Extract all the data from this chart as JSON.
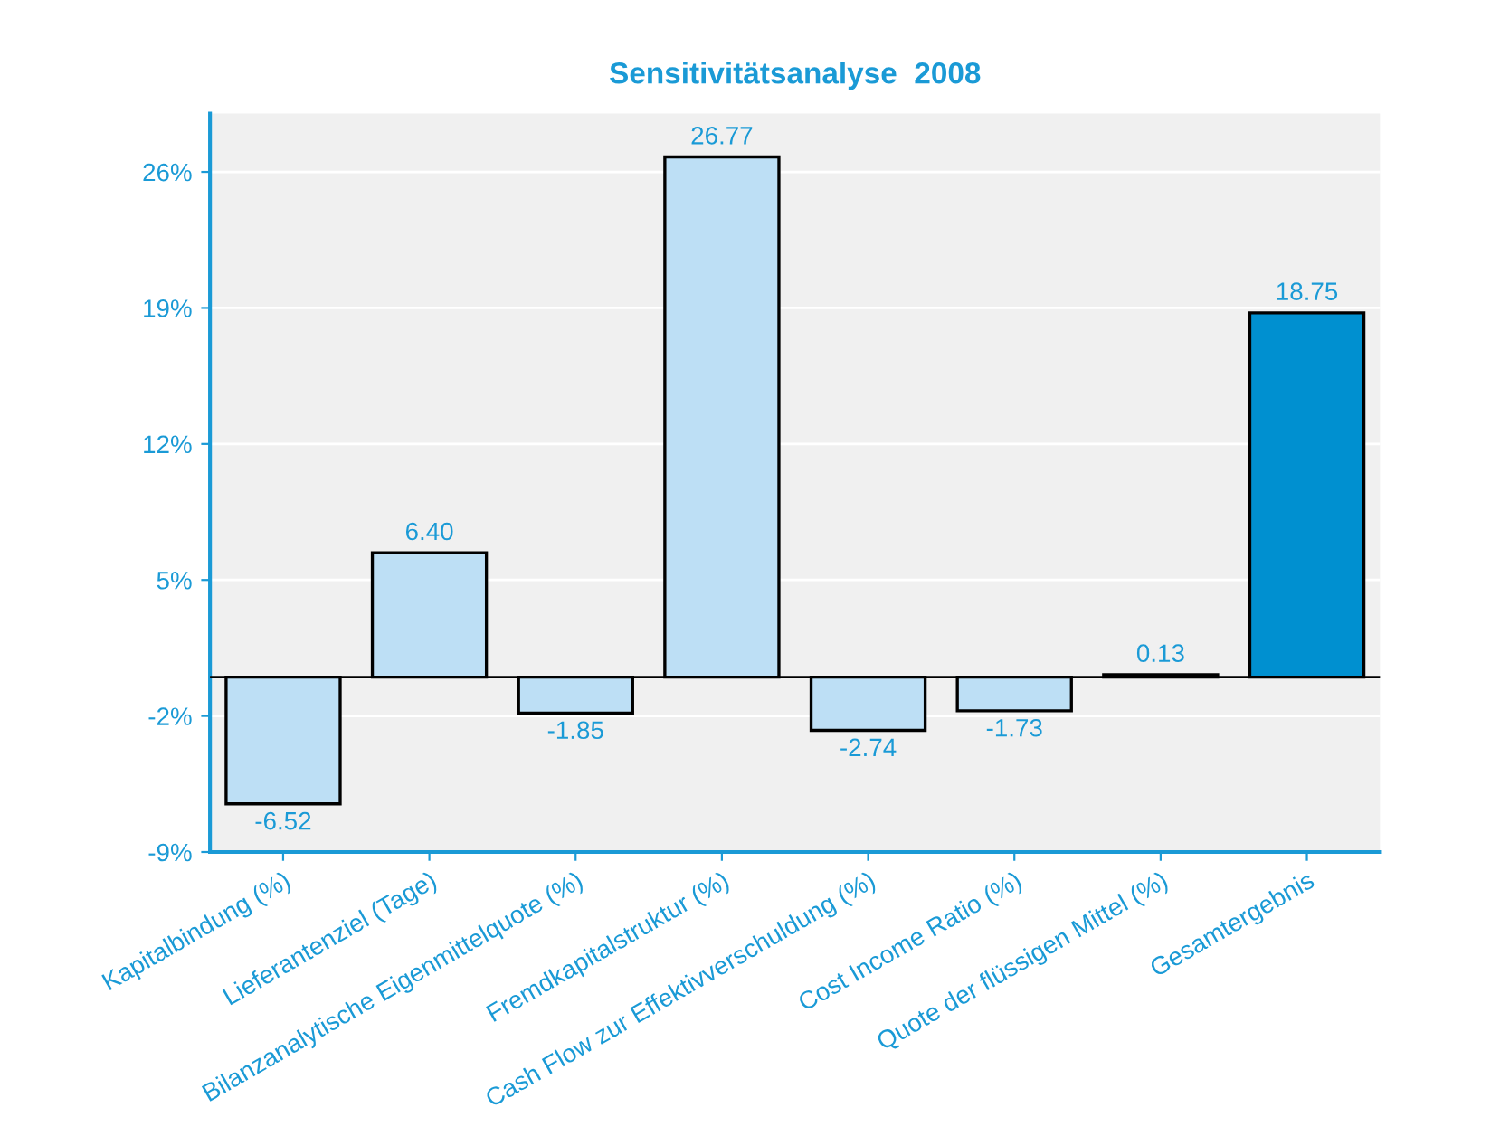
{
  "chart_data": {
    "type": "bar",
    "title": "Sensitivitätsanalyse  2008",
    "categories": [
      "Kapitalbindung (%)",
      "Lieferantenziel (Tage)",
      "Bilanzanalytische Eigenmittelquote (%)",
      "Fremdkapitalstruktur (%)",
      "Cash Flow zur Effektivverschuldung (%)",
      "Cost Income Ratio (%)",
      "Quote der flüssigen Mittel (%)",
      "Gesamtergebnis"
    ],
    "values": [
      -6.52,
      6.4,
      -1.85,
      26.77,
      -2.74,
      -1.73,
      0.13,
      18.75
    ],
    "value_labels": [
      "-6.52",
      "6.40",
      "-1.85",
      "26.77",
      "-2.74",
      "-1.73",
      "0.13",
      "18.75"
    ],
    "colors": [
      "#bddff5",
      "#bddff5",
      "#bddff5",
      "#bddff5",
      "#bddff5",
      "#bddff5",
      "#bddff5",
      "#0090d0"
    ],
    "ylim": [
      -9,
      29
    ],
    "yticks": [
      {
        "value": -9,
        "label": "-9%"
      },
      {
        "value": -2,
        "label": "-2%"
      },
      {
        "value": 5,
        "label": "5%"
      },
      {
        "value": 12,
        "label": "12%"
      },
      {
        "value": 19,
        "label": "19%"
      },
      {
        "value": 26,
        "label": "26%"
      }
    ],
    "ref_lines": [
      {
        "axis": "y",
        "value": 0,
        "label": null,
        "color": "#000000"
      }
    ],
    "grid": "y",
    "legend": false
  }
}
